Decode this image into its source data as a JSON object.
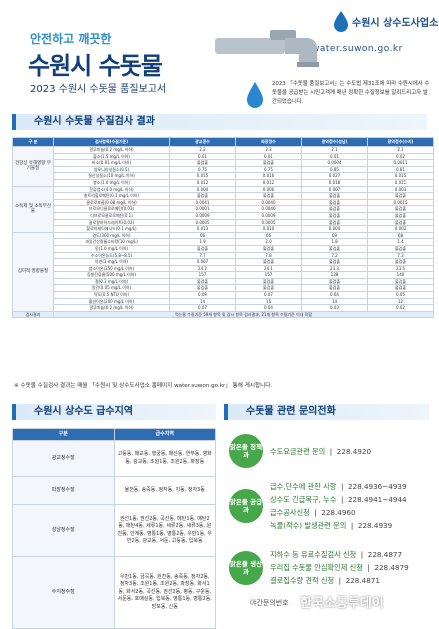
{
  "header": {
    "slogan": "안전하고 깨끗한",
    "title": "수원시 수돗물",
    "subtitle": "2023 수원시 수돗물 품질보고서",
    "org": "수원시 상수도사업소",
    "url": "water.suwon.go.kr",
    "intro": "2023 「수돗물 품질보고서」는 수도법 제31조에 따라 수원시에서 수돗물을 공급받는 시민고객께 매년 정확한 수질정보를 알려드리고자 발간되었습니다."
  },
  "quality": {
    "title": "수원시 수돗물 수질검사 결과",
    "columns": [
      "구 분",
      "검사항목(수질기준)",
      "광교정수",
      "파장정수",
      "광역정수(성남)",
      "광역정수(수지)"
    ],
    "groups": [
      {
        "name": "건강상 유해영향 무기물질",
        "rows": [
          [
            "알루미늄(0.2 mg/L 이하)",
            "2.2",
            "2.3",
            "2.1",
            "2.1"
          ],
          [
            "불소(1.5 mg/L 이하)",
            "0.01",
            "0.01",
            "0.01",
            "0.02"
          ],
          [
            "비소(0.01 mg/L 이하)",
            "불검출",
            "불검출",
            "0.0004",
            "0.0011"
          ],
          [
            "암모니아성질소(0.5)",
            "0.75",
            "0.75",
            "0.85",
            "0.81"
          ],
          [
            "질산성질소(10 mg/L 이하)",
            "0.015",
            "0.016",
            "0.027",
            "0.015"
          ],
          [
            "붕소(1.0 mg/L 이하)",
            "0.012",
            "0.012",
            "0.018",
            "0.011"
          ]
        ]
      },
      {
        "name": "소독제 및 소독부산물",
        "rows": [
          [
            "잔류염소(4.0 mg/L 이하)",
            "0.004",
            "0.006",
            "0.007",
            "0.003"
          ],
          [
            "총트리할로메탄(0.1 mg/L 이하)",
            "불검출",
            "불검출",
            "불검출",
            "불검출"
          ],
          [
            "클로로포름(0.08 mg/L 이하)",
            "0.0041",
            "0.0040",
            "불검출",
            "0.0015"
          ],
          [
            "브로모디클로로메탄(0.03)",
            "0.0001",
            "0.0046",
            "불검출",
            "불검출"
          ],
          [
            "디브로모클로로메탄(0.1)",
            "0.0009",
            "0.0009",
            "불검출",
            "불검출"
          ],
          [
            "클로랄하이드레이트(0.03)",
            "0.0005",
            "0.0005",
            "불검출",
            "불검출"
          ],
          [
            "할로아세틱에시드(0.1 mg/L)",
            "0.013",
            "0.010",
            "0.004",
            "0.002"
          ]
        ]
      },
      {
        "name": "심미적 영향물질",
        "rows": [
          [
            "경도(300 mg/L 이하)",
            "66",
            "66",
            "69",
            "68"
          ],
          [
            "과망간산칼륨소비량(10 mg/L)",
            "1.9",
            "2.0",
            "1.8",
            "1.4"
          ],
          [
            "동(1.0 mg/L 이하)",
            "불검출",
            "불검출",
            "불검출",
            "불검출"
          ],
          [
            "수소이온농도(5.8~8.5)",
            "7.7",
            "7.8",
            "7.2",
            "7.3"
          ],
          [
            "아연(3 mg/L 이하)",
            "0.007",
            "불검출",
            "불검출",
            "불검출"
          ],
          [
            "염소이온(250 mg/L 이하)",
            "24.2",
            "24.1",
            "23.3",
            "23.5"
          ],
          [
            "증발잔류물(500 mg/L 이하)",
            "157",
            "157",
            "138",
            "140"
          ],
          [
            "철(0.3 mg/L 이하)",
            "불검출",
            "불검출",
            "불검출",
            "불검출"
          ],
          [
            "망간(0.05 mg/L 이하)",
            "불검출",
            "불검출",
            "불검출",
            "불검출"
          ],
          [
            "탁도(0.5 NTU 이하)",
            "0.09",
            "0.07",
            "0.04",
            "0.05"
          ],
          [
            "황산이온(200 mg/L 이하)",
            "14",
            "15",
            "14",
            "12"
          ],
          [
            "알루미늄(0.2 mg/L 이하)",
            "0.07",
            "0.04",
            "0.03",
            "0.02"
          ]
        ]
      }
    ],
    "result": {
      "label": "검사결과",
      "text": "먹는물 수질기준 59개 항목 및 감시 항목 검사결과, 21개 항목 수질기준 이내 적합"
    }
  },
  "note": "※ 수돗물 수질검사 결과는 매월 「수원시 및 상수도사업소 홈페이지 water.suwon.go.kr」 통해 게시합니다.",
  "supply": {
    "title": "수원시 상수도 급수지역",
    "columns": [
      "구분",
      "급수지역"
    ],
    "rows": [
      [
        "광교정수장",
        "고등동, 매교동, 행궁동, 매산동, 연무동, 영화동, 광교동, 조원1동, 조원2동, 파장동"
      ],
      [
        "파장정수장",
        "율천동, 송죽동, 정자동, 지동, 정자3동"
      ],
      [
        "성남정수장",
        "권선1동, 권선2동, 곡선동, 매탄1동, 매탄2동, 매탄4동, 세류1동, 세류2동, 세류3동, 원천동, 인계동, 영통1동, 영통2동, 우만1동, 우만2동, 광교동, 서둔, 고등동, 입북동"
      ],
      [
        "수지정수장",
        "우만1동, 금곡동, 원천동, 송죽동, 정자2동, 정자3동, 조원1동, 조원2동, 파장동, 화서1동, 화서2동, 곡선동, 권선2동, 평동, 구운동, 서둔동, 호매실동, 입북동, 영통1동, 영통2동, 망포동, 신동"
      ]
    ]
  },
  "contact": {
    "title": "수돗물 관련 문의전화",
    "groups": [
      {
        "dept": "맑은물 정책과",
        "lines": [
          [
            "수도요금관련 문의",
            "228.4920"
          ]
        ]
      },
      {
        "dept": "맑은물 공급과",
        "lines": [
          [
            "급수,단수에 관한 사항",
            "228.4936~4939"
          ],
          [
            "상수도 긴급복구, 누수",
            "228.4941~4944"
          ],
          [
            "급수공사신청",
            "228.4960"
          ],
          [
            "녹물(적수) 발생관련 문의",
            "228.4939"
          ]
        ]
      },
      {
        "dept": "맑은물 생산과",
        "lines": [
          [
            "지하수 등 유료수질검사 신청",
            "228.4877"
          ],
          [
            "우리집 수돗물 안심확인제 신청",
            "228.4879"
          ],
          [
            "결로집수량 견적 신청",
            "228.4871"
          ]
        ]
      }
    ],
    "night": "야간문의번호"
  },
  "watermark": "한국소통투데이"
}
